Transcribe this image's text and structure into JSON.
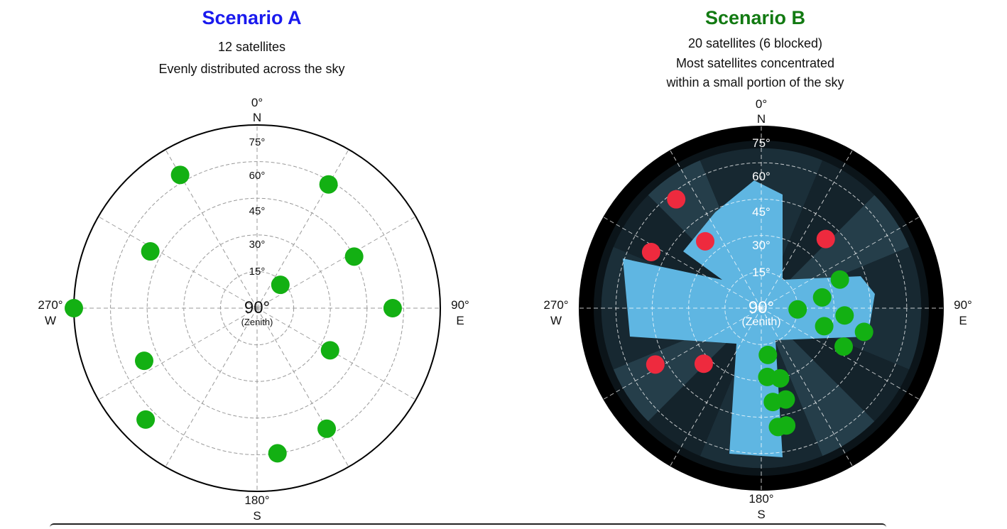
{
  "scenario_a": {
    "title": "Scenario A",
    "title_color": "#1a1aee",
    "subtitle_1": "12 satellites",
    "subtitle_2": "Evenly distributed across the sky",
    "center_label": "90°",
    "center_sub": "(Zenith)",
    "ring_labels": [
      "75°",
      "60°",
      "45°",
      "30°",
      "15°"
    ],
    "directions": {
      "n_deg": "0°",
      "n": "N",
      "e_deg": "90°",
      "e": "E",
      "s_deg": "180°",
      "s": "S",
      "w_deg": "270°",
      "w": "W"
    },
    "satellites": [
      {
        "az": 330,
        "ring": 4.2,
        "status": "visible"
      },
      {
        "az": 30,
        "ring": 3.9,
        "status": "visible"
      },
      {
        "az": 298,
        "ring": 3.3,
        "status": "visible"
      },
      {
        "az": 62,
        "ring": 3.0,
        "status": "visible"
      },
      {
        "az": 270,
        "ring": 5.0,
        "status": "visible"
      },
      {
        "az": 90,
        "ring": 3.7,
        "status": "visible"
      },
      {
        "az": 245,
        "ring": 3.4,
        "status": "visible"
      },
      {
        "az": 120,
        "ring": 2.3,
        "status": "visible"
      },
      {
        "az": 225,
        "ring": 4.3,
        "status": "visible"
      },
      {
        "az": 150,
        "ring": 3.8,
        "status": "visible"
      },
      {
        "az": 172,
        "ring": 4.0,
        "status": "visible"
      },
      {
        "az": 45,
        "ring": 0.9,
        "status": "visible"
      }
    ]
  },
  "scenario_b": {
    "title": "Scenario B",
    "title_color": "#127a12",
    "subtitle_1": "20 satellites (6 blocked)",
    "subtitle_2": "Most satellites concentrated",
    "subtitle_3": "within a small portion of the sky",
    "center_label": "90°",
    "center_sub": "(Zenith)",
    "ring_labels": [
      "75°",
      "60°",
      "45°",
      "30°",
      "15°"
    ],
    "directions": {
      "n_deg": "0°",
      "n": "N",
      "e_deg": "90°",
      "e": "E",
      "s_deg": "180°",
      "s": "S",
      "w_deg": "270°",
      "w": "W"
    },
    "satellites": [
      {
        "az": 322,
        "ring": 3.8,
        "status": "blocked"
      },
      {
        "az": 297,
        "ring": 3.4,
        "status": "blocked"
      },
      {
        "az": 320,
        "ring": 2.4,
        "status": "blocked"
      },
      {
        "az": 43,
        "ring": 2.6,
        "status": "blocked"
      },
      {
        "az": 242,
        "ring": 3.3,
        "status": "blocked"
      },
      {
        "az": 226,
        "ring": 2.2,
        "status": "blocked"
      },
      {
        "az": 80,
        "ring": 1.7,
        "status": "visible"
      },
      {
        "az": 70,
        "ring": 2.3,
        "status": "visible"
      },
      {
        "az": 92,
        "ring": 1.0,
        "status": "visible"
      },
      {
        "az": 95,
        "ring": 2.3,
        "status": "visible"
      },
      {
        "az": 106,
        "ring": 1.8,
        "status": "visible"
      },
      {
        "az": 103,
        "ring": 2.9,
        "status": "visible"
      },
      {
        "az": 115,
        "ring": 2.5,
        "status": "visible"
      },
      {
        "az": 172,
        "ring": 1.3,
        "status": "visible"
      },
      {
        "az": 175,
        "ring": 1.9,
        "status": "visible"
      },
      {
        "az": 165,
        "ring": 2.0,
        "status": "visible"
      },
      {
        "az": 173,
        "ring": 2.6,
        "status": "visible"
      },
      {
        "az": 165,
        "ring": 2.6,
        "status": "visible"
      },
      {
        "az": 172,
        "ring": 3.3,
        "status": "visible"
      },
      {
        "az": 168,
        "ring": 3.3,
        "status": "visible"
      }
    ]
  },
  "colors": {
    "visible": "#13b013",
    "blocked": "#ee2a3e",
    "sky": "#5fb6e2",
    "ground": "#0b1419"
  }
}
